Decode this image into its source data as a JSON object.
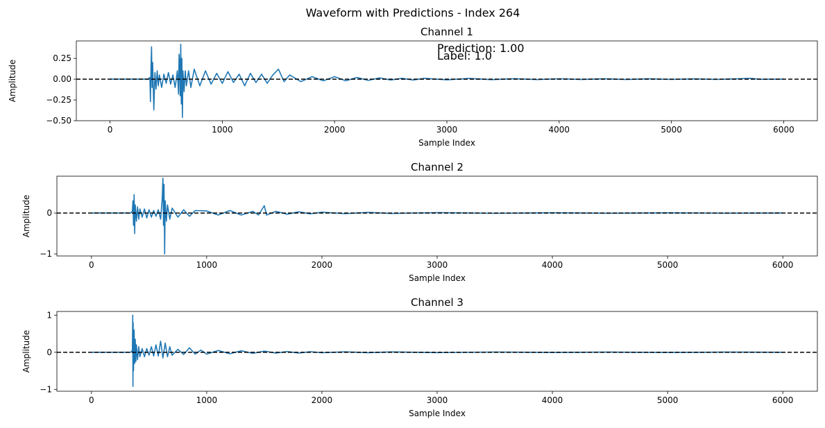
{
  "figure": {
    "suptitle": "Waveform with Predictions - Index 264"
  },
  "annotations": {
    "prediction_text": "Prediction: 1.00",
    "label_text": "Label: 1.0",
    "prediction_color": "#0000ff",
    "label_color": "#ff0000"
  },
  "colors": {
    "waveform": "#1f77b4",
    "zero_line": "#000000"
  },
  "chart_data": [
    {
      "type": "line",
      "title": "Channel 1",
      "xlabel": "Sample Index",
      "ylabel": "Amplitude",
      "xlim": [
        -300,
        6300
      ],
      "ylim": [
        -0.5,
        0.46
      ],
      "xticks": [
        0,
        1000,
        2000,
        3000,
        4000,
        5000,
        6000
      ],
      "xtick_labels": [
        "0",
        "1000",
        "2000",
        "3000",
        "4000",
        "5000",
        "6000"
      ],
      "yticks": [
        -0.5,
        -0.25,
        0.0,
        0.25
      ],
      "ytick_labels": [
        "−0.50",
        "−0.25",
        "0.00",
        "0.25"
      ],
      "zero_line": {
        "y": 0,
        "style": "dashed"
      },
      "series": [
        {
          "x": [
            0,
            340,
            355,
            360,
            365,
            370,
            375,
            380,
            390,
            400,
            410,
            420,
            430,
            440,
            460,
            480,
            500,
            520,
            540,
            560,
            580,
            600,
            610,
            615,
            620,
            625,
            630,
            635,
            640,
            645,
            650,
            660,
            670,
            680,
            700,
            720,
            750,
            800,
            850,
            900,
            950,
            1000,
            1050,
            1100,
            1150,
            1200,
            1250,
            1300,
            1350,
            1400,
            1450,
            1500,
            1550,
            1600,
            1700,
            1800,
            1900,
            2000,
            2100,
            2200,
            2300,
            2400,
            2500,
            2600,
            2700,
            2800,
            3000,
            3200,
            3400,
            3600,
            3800,
            4000,
            4200,
            4400,
            4600,
            4800,
            5000,
            5200,
            5400,
            5600,
            5700,
            5800,
            6000
          ],
          "y": [
            0,
            0,
            0.02,
            -0.27,
            0.15,
            0.39,
            -0.1,
            0.2,
            -0.37,
            0.08,
            -0.12,
            0.1,
            -0.08,
            0.05,
            -0.1,
            0.06,
            -0.05,
            0.08,
            -0.06,
            0.05,
            -0.1,
            0.1,
            -0.18,
            0.3,
            0.2,
            -0.2,
            0.42,
            -0.3,
            0.25,
            -0.46,
            0.1,
            -0.15,
            0.1,
            -0.08,
            0.1,
            -0.1,
            0.12,
            -0.08,
            0.1,
            -0.06,
            0.07,
            -0.05,
            0.09,
            -0.04,
            0.06,
            -0.08,
            0.07,
            -0.04,
            0.06,
            -0.05,
            0.05,
            0.12,
            -0.03,
            0.05,
            -0.03,
            0.03,
            -0.02,
            0.03,
            -0.02,
            0.02,
            -0.015,
            0.015,
            -0.01,
            0.01,
            -0.01,
            0.01,
            -0.008,
            0.008,
            -0.006,
            0.006,
            -0.005,
            0.005,
            -0.004,
            0.004,
            -0.004,
            0.004,
            -0.003,
            0.003,
            -0.003,
            0.004,
            0.01,
            -0.002,
            0
          ]
        }
      ]
    },
    {
      "type": "line",
      "title": "Channel 2",
      "xlabel": "Sample Index",
      "ylabel": "Amplitude",
      "xlim": [
        -300,
        6300
      ],
      "ylim": [
        -1.05,
        0.9
      ],
      "xticks": [
        0,
        1000,
        2000,
        3000,
        4000,
        5000,
        6000
      ],
      "xtick_labels": [
        "0",
        "1000",
        "2000",
        "3000",
        "4000",
        "5000",
        "6000"
      ],
      "yticks": [
        -1,
        0
      ],
      "ytick_labels": [
        "−1",
        "0"
      ],
      "zero_line": {
        "y": 0,
        "style": "dashed"
      },
      "series": [
        {
          "x": [
            0,
            340,
            355,
            360,
            365,
            370,
            375,
            380,
            390,
            400,
            410,
            420,
            440,
            460,
            480,
            500,
            520,
            540,
            560,
            580,
            600,
            610,
            615,
            620,
            625,
            630,
            635,
            640,
            650,
            660,
            680,
            700,
            750,
            800,
            850,
            900,
            1000,
            1100,
            1200,
            1300,
            1400,
            1450,
            1500,
            1520,
            1600,
            1700,
            1800,
            1900,
            2000,
            2200,
            2400,
            2600,
            3000,
            3500,
            4000,
            4500,
            5000,
            5500,
            6000
          ],
          "y": [
            0,
            0,
            0.05,
            0.3,
            -0.3,
            0.45,
            -0.5,
            0.2,
            -0.2,
            0.15,
            -0.15,
            0.1,
            -0.1,
            0.1,
            -0.12,
            0.08,
            -0.1,
            0.06,
            -0.08,
            0.08,
            -0.15,
            0.2,
            0.4,
            0.85,
            -0.3,
            0.7,
            -1.0,
            0.3,
            -0.2,
            0.2,
            -0.15,
            0.12,
            -0.1,
            0.08,
            -0.08,
            0.06,
            0.05,
            -0.05,
            0.06,
            -0.05,
            0.04,
            -0.05,
            0.18,
            -0.05,
            0.04,
            -0.03,
            0.03,
            -0.02,
            0.02,
            -0.015,
            0.015,
            -0.01,
            0.01,
            -0.008,
            0.006,
            -0.005,
            0.005,
            -0.004,
            0
          ]
        }
      ]
    },
    {
      "type": "line",
      "title": "Channel 3",
      "xlabel": "Sample Index",
      "ylabel": "Amplitude",
      "xlim": [
        -300,
        6300
      ],
      "ylim": [
        -1.05,
        1.1
      ],
      "xticks": [
        0,
        1000,
        2000,
        3000,
        4000,
        5000,
        6000
      ],
      "xtick_labels": [
        "0",
        "1000",
        "2000",
        "3000",
        "4000",
        "5000",
        "6000"
      ],
      "yticks": [
        -1,
        0,
        1
      ],
      "ytick_labels": [
        "−1",
        "0",
        "1"
      ],
      "zero_line": {
        "y": 0,
        "style": "dashed"
      },
      "series": [
        {
          "x": [
            0,
            340,
            355,
            358,
            360,
            362,
            365,
            370,
            375,
            380,
            385,
            390,
            400,
            410,
            420,
            440,
            460,
            480,
            500,
            520,
            540,
            560,
            580,
            600,
            620,
            640,
            660,
            680,
            700,
            750,
            800,
            850,
            900,
            950,
            1000,
            1100,
            1200,
            1300,
            1400,
            1500,
            1600,
            1700,
            1800,
            1900,
            2000,
            2200,
            2400,
            2600,
            3000,
            3500,
            4000,
            4500,
            5000,
            5500,
            6000
          ],
          "y": [
            0,
            0,
            0.05,
            1.0,
            -0.92,
            0.8,
            -0.5,
            0.6,
            -0.3,
            0.35,
            -0.25,
            0.2,
            -0.2,
            0.15,
            -0.12,
            0.1,
            -0.12,
            0.1,
            -0.08,
            0.15,
            -0.1,
            0.2,
            -0.1,
            0.3,
            -0.15,
            0.25,
            -0.12,
            0.15,
            -0.08,
            0.08,
            -0.06,
            0.12,
            -0.05,
            0.06,
            -0.05,
            0.05,
            -0.04,
            0.04,
            -0.03,
            0.03,
            -0.02,
            0.02,
            -0.02,
            0.015,
            -0.012,
            0.012,
            -0.01,
            0.01,
            -0.008,
            0.006,
            -0.005,
            0.005,
            -0.004,
            0.004,
            0
          ]
        }
      ]
    }
  ]
}
